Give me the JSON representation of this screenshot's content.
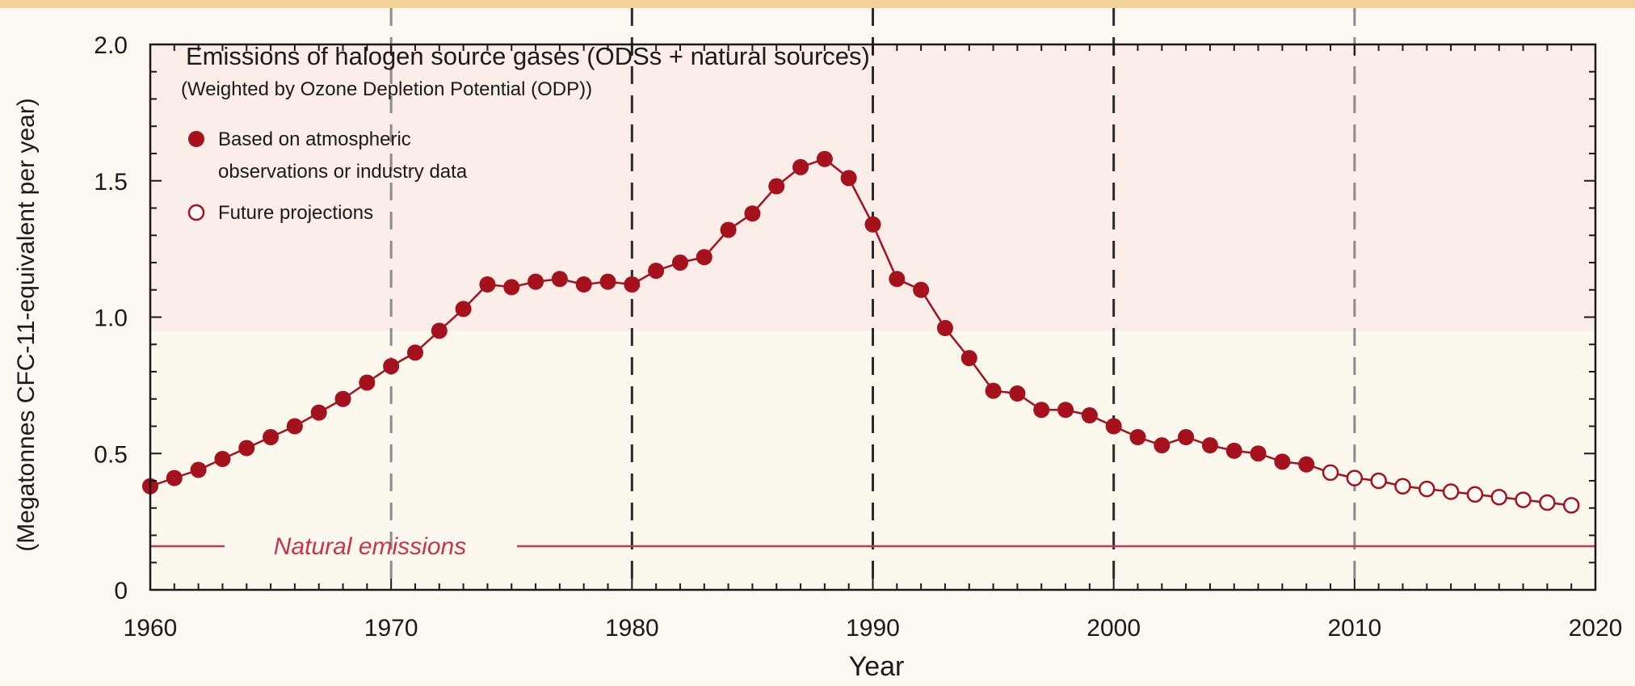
{
  "colors": {
    "series": "#a5111c",
    "natural_line": "#c8354a",
    "dashed_dark": "#2b2b2b",
    "dashed_light": "#8c8c8c",
    "band_top": "#fbeee9",
    "band_bottom": "#fdf8ee",
    "outer_stripe": "#f4d39b"
  },
  "chart_data": {
    "type": "line",
    "title": "Emissions of halogen source gases (ODSs + natural sources)",
    "subtitle": "(Weighted by Ozone Depletion Potential (ODP))",
    "xlabel": "Year",
    "ylabel": "(Megatonnes CFC-11-equivalent per year)",
    "xlim": [
      1960,
      2020
    ],
    "ylim": [
      0,
      2.0
    ],
    "x_ticks": [
      "1960",
      "1970",
      "1980",
      "1990",
      "2000",
      "2010",
      "2020"
    ],
    "y_ticks": [
      "0",
      "0.5",
      "1.0",
      "1.5",
      "2.0"
    ],
    "legend_position": "top-left",
    "series": [
      {
        "name": "Based on atmospheric observations or industry data",
        "marker": "filled-circle",
        "points": [
          [
            1960,
            0.38
          ],
          [
            1961,
            0.41
          ],
          [
            1962,
            0.44
          ],
          [
            1963,
            0.48
          ],
          [
            1964,
            0.52
          ],
          [
            1965,
            0.56
          ],
          [
            1966,
            0.6
          ],
          [
            1967,
            0.65
          ],
          [
            1968,
            0.7
          ],
          [
            1969,
            0.76
          ],
          [
            1970,
            0.82
          ],
          [
            1971,
            0.87
          ],
          [
            1972,
            0.95
          ],
          [
            1973,
            1.03
          ],
          [
            1974,
            1.12
          ],
          [
            1975,
            1.11
          ],
          [
            1976,
            1.13
          ],
          [
            1977,
            1.14
          ],
          [
            1978,
            1.12
          ],
          [
            1979,
            1.13
          ],
          [
            1980,
            1.12
          ],
          [
            1981,
            1.17
          ],
          [
            1982,
            1.2
          ],
          [
            1983,
            1.22
          ],
          [
            1984,
            1.32
          ],
          [
            1985,
            1.38
          ],
          [
            1986,
            1.48
          ],
          [
            1987,
            1.55
          ],
          [
            1988,
            1.58
          ],
          [
            1989,
            1.51
          ],
          [
            1990,
            1.34
          ],
          [
            1991,
            1.14
          ],
          [
            1992,
            1.1
          ],
          [
            1993,
            0.96
          ],
          [
            1994,
            0.85
          ],
          [
            1995,
            0.73
          ],
          [
            1996,
            0.72
          ],
          [
            1997,
            0.66
          ],
          [
            1998,
            0.66
          ],
          [
            1999,
            0.64
          ],
          [
            2000,
            0.6
          ],
          [
            2001,
            0.56
          ],
          [
            2002,
            0.53
          ],
          [
            2003,
            0.56
          ],
          [
            2004,
            0.53
          ],
          [
            2005,
            0.51
          ],
          [
            2006,
            0.5
          ],
          [
            2007,
            0.47
          ],
          [
            2008,
            0.46
          ]
        ]
      },
      {
        "name": "Future projections",
        "marker": "open-circle",
        "points": [
          [
            2009,
            0.43
          ],
          [
            2010,
            0.41
          ],
          [
            2011,
            0.4
          ],
          [
            2012,
            0.38
          ],
          [
            2013,
            0.37
          ],
          [
            2014,
            0.36
          ],
          [
            2015,
            0.35
          ],
          [
            2016,
            0.34
          ],
          [
            2017,
            0.33
          ],
          [
            2018,
            0.32
          ],
          [
            2019,
            0.31
          ]
        ]
      }
    ],
    "reference_lines": [
      {
        "label": "Natural emissions",
        "y": 0.16
      }
    ],
    "vertical_dashed_lines": [
      {
        "x": 1970,
        "style": "light"
      },
      {
        "x": 1980,
        "style": "dark"
      },
      {
        "x": 1990,
        "style": "dark"
      },
      {
        "x": 2000,
        "style": "dark"
      },
      {
        "x": 2010,
        "style": "light"
      }
    ]
  }
}
